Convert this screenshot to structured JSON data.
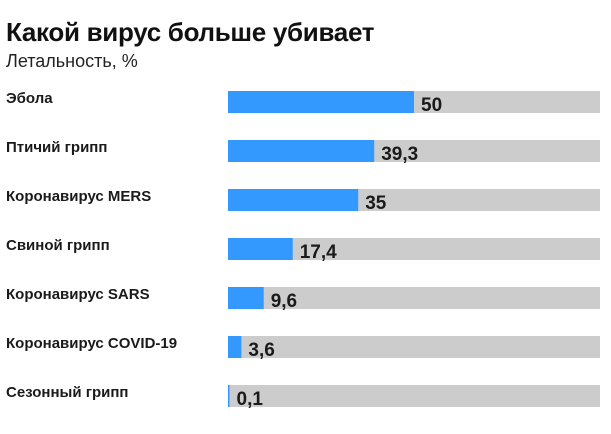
{
  "chart_data": {
    "type": "bar",
    "orientation": "horizontal",
    "title": "Какой вирус больше убивает",
    "subtitle": "Летальность, %",
    "categories": [
      "Эбола",
      "Птичий грипп",
      "Коронавирус MERS",
      "Свиной грипп",
      "Коронавирус SARS",
      "Коронавирус COVID-19",
      "Сезонный грипп"
    ],
    "values": [
      50,
      39.3,
      35,
      17.4,
      9.6,
      3.6,
      0.1
    ],
    "value_labels": [
      "50",
      "39,3",
      "35",
      "17,4",
      "9,6",
      "3,6",
      "0,1"
    ],
    "xlim": [
      0,
      100
    ],
    "grid": false,
    "legend": "none",
    "colors": {
      "bar": "#3399ff",
      "track": "#cccccc",
      "text": "#1a1a1a"
    }
  }
}
